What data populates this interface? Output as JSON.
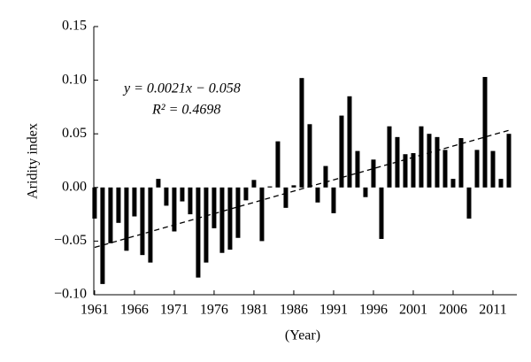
{
  "chart_data": {
    "type": "bar",
    "y_label": "Aridity index",
    "x_label": "(Year)",
    "equation": "y = 0.0021x − 0.058",
    "r_squared": "R² = 0.4698",
    "x": [
      1961,
      1962,
      1963,
      1964,
      1965,
      1966,
      1967,
      1968,
      1969,
      1970,
      1971,
      1972,
      1973,
      1974,
      1975,
      1976,
      1977,
      1978,
      1979,
      1980,
      1981,
      1982,
      1983,
      1984,
      1985,
      1986,
      1987,
      1988,
      1989,
      1990,
      1991,
      1992,
      1993,
      1994,
      1995,
      1996,
      1997,
      1998,
      1999,
      2000,
      2001,
      2002,
      2003,
      2004,
      2005,
      2006,
      2007,
      2008,
      2009,
      2010,
      2011,
      2012,
      2013
    ],
    "values": [
      -0.029,
      -0.09,
      -0.052,
      -0.033,
      -0.059,
      -0.027,
      -0.063,
      -0.07,
      0.008,
      -0.017,
      -0.041,
      -0.013,
      -0.025,
      -0.084,
      -0.07,
      -0.038,
      -0.061,
      -0.058,
      -0.047,
      -0.012,
      0.007,
      -0.05,
      0.001,
      0.043,
      -0.019,
      0.002,
      0.102,
      0.059,
      -0.014,
      0.02,
      -0.024,
      0.067,
      0.085,
      0.034,
      -0.009,
      0.026,
      -0.048,
      0.057,
      0.047,
      0.031,
      0.032,
      0.057,
      0.05,
      0.047,
      0.035,
      0.008,
      0.046,
      -0.029,
      0.035,
      0.103,
      0.034,
      0.008,
      0.05
    ],
    "color": "#000000",
    "trend_line": {
      "x": [
        1961,
        2013
      ],
      "values": [
        -0.0559,
        0.0533
      ],
      "color": "#000000",
      "dashed": true
    },
    "xlim": [
      1960.9,
      2014
    ],
    "xticks": [
      1961,
      1966,
      1971,
      1976,
      1981,
      1986,
      1991,
      1996,
      2001,
      2006,
      2011
    ],
    "ylim": [
      -0.1,
      0.15
    ],
    "yticks": [
      {
        "value": -0.1,
        "label": "−0.10"
      },
      {
        "value": -0.05,
        "label": "−0.05"
      },
      {
        "value": 0,
        "label": "0.00"
      },
      {
        "value": 0.05,
        "label": "0.05"
      },
      {
        "value": 0.1,
        "label": "0.10"
      },
      {
        "value": 0.15,
        "label": "0.15"
      }
    ],
    "grid": false
  }
}
